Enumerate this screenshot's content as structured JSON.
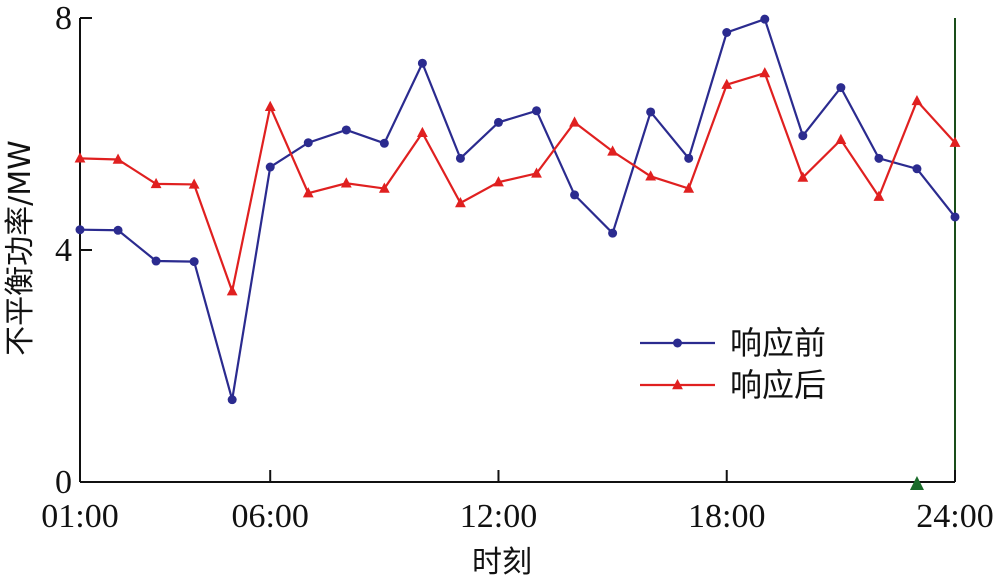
{
  "chart_data": {
    "type": "line",
    "title": "",
    "xlabel": "时刻",
    "ylabel": "不平衡功率/MW",
    "xlim": [
      1,
      24
    ],
    "ylim": [
      0,
      8
    ],
    "x_ticks": [
      {
        "value": 1,
        "label": "01:00"
      },
      {
        "value": 6,
        "label": "06:00"
      },
      {
        "value": 12,
        "label": "12:00"
      },
      {
        "value": 18,
        "label": "18:00"
      },
      {
        "value": 24,
        "label": "24:00"
      }
    ],
    "y_ticks": [
      {
        "value": 0,
        "label": "0"
      },
      {
        "value": 4,
        "label": "4"
      },
      {
        "value": 8,
        "label": "8"
      }
    ],
    "x": [
      1,
      2,
      3,
      4,
      5,
      6,
      7,
      8,
      9,
      10,
      11,
      12,
      13,
      14,
      15,
      16,
      17,
      18,
      19,
      20,
      21,
      22,
      23,
      24
    ],
    "series": [
      {
        "name": "响应前",
        "color": "#2b2b8f",
        "marker": "circle",
        "values": [
          4.35,
          4.34,
          3.81,
          3.8,
          1.42,
          5.43,
          5.85,
          6.07,
          5.84,
          7.22,
          5.58,
          6.2,
          6.4,
          4.95,
          4.29,
          6.38,
          5.58,
          7.75,
          7.98,
          5.97,
          6.8,
          5.58,
          5.4,
          4.57
        ]
      },
      {
        "name": "响应后",
        "color": "#e02020",
        "marker": "triangle",
        "values": [
          5.58,
          5.56,
          5.14,
          5.13,
          3.29,
          6.47,
          4.98,
          5.15,
          5.06,
          6.02,
          4.81,
          5.17,
          5.32,
          6.2,
          5.7,
          5.27,
          5.06,
          6.85,
          7.05,
          5.25,
          5.9,
          4.92,
          6.57,
          5.85
        ]
      }
    ],
    "legend_position": "lower-right",
    "extra_marker": {
      "x": 23,
      "y": 0,
      "color": "#1a6b2a",
      "shape": "triangle"
    },
    "right_line_color": "#1a4d1a"
  }
}
